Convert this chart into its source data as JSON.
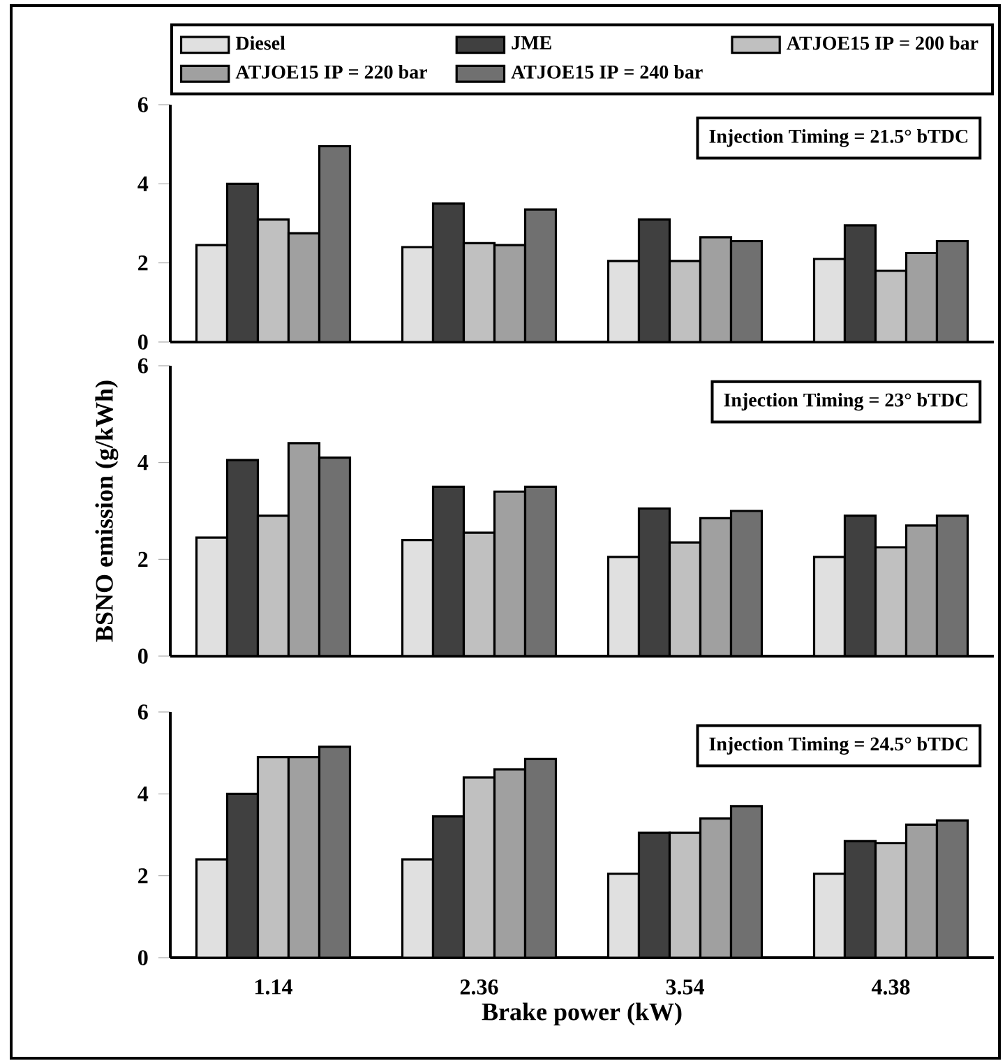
{
  "chart_data": [
    {
      "type": "bar",
      "categories": [
        "1.14",
        "2.36",
        "3.54",
        "4.38"
      ],
      "tick_labels": "y",
      "ylim": [
        0,
        6
      ],
      "yticks": [
        0,
        2,
        4,
        6
      ],
      "legend": "top",
      "annotations": [
        "Injection Timing = 21.5° bTDC"
      ],
      "series": [
        {
          "name": "Diesel",
          "color": "#e0e0e0",
          "values": [
            2.45,
            2.4,
            2.05,
            2.1
          ]
        },
        {
          "name": "JME",
          "color": "#404040",
          "values": [
            4.0,
            3.5,
            3.1,
            2.95
          ]
        },
        {
          "name": "ATJOE15 IP = 200 bar",
          "color": "#c0c0c0",
          "values": [
            3.1,
            2.5,
            2.05,
            1.8
          ]
        },
        {
          "name": "ATJOE15 IP = 220 bar",
          "color": "#a0a0a0",
          "values": [
            2.75,
            2.45,
            2.65,
            2.25
          ]
        },
        {
          "name": "ATJOE15 IP = 240 bar",
          "color": "#707070",
          "values": [
            4.95,
            3.35,
            2.55,
            2.55
          ]
        }
      ]
    },
    {
      "type": "bar",
      "categories": [
        "1.14",
        "2.36",
        "3.54",
        "4.38"
      ],
      "tick_labels": "y",
      "ylabel": "BSNO emission (g/kWh)",
      "ylim": [
        0,
        6
      ],
      "yticks": [
        0,
        2,
        4,
        6
      ],
      "annotations": [
        "Injection Timing = 23° bTDC"
      ],
      "series": [
        {
          "color": "#e0e0e0",
          "values": [
            2.45,
            2.4,
            2.05,
            2.05
          ]
        },
        {
          "color": "#404040",
          "values": [
            4.05,
            3.5,
            3.05,
            2.9
          ]
        },
        {
          "color": "#c0c0c0",
          "values": [
            2.9,
            2.55,
            2.35,
            2.25
          ]
        },
        {
          "color": "#a0a0a0",
          "values": [
            4.4,
            3.4,
            2.85,
            2.7
          ]
        },
        {
          "color": "#707070",
          "values": [
            4.1,
            3.5,
            3.0,
            2.9
          ]
        }
      ]
    },
    {
      "type": "bar",
      "categories": [
        "1.14",
        "2.36",
        "3.54",
        "4.38"
      ],
      "xlabel": "Brake power (kW)",
      "ylim": [
        0,
        6
      ],
      "yticks": [
        0,
        2,
        4,
        6
      ],
      "annotations": [
        "Injection Timing = 24.5° bTDC"
      ],
      "series": [
        {
          "color": "#e0e0e0",
          "values": [
            2.4,
            2.4,
            2.05,
            2.05
          ]
        },
        {
          "color": "#404040",
          "values": [
            4.0,
            3.45,
            3.05,
            2.85
          ]
        },
        {
          "color": "#c0c0c0",
          "values": [
            4.9,
            4.4,
            3.05,
            2.8
          ]
        },
        {
          "color": "#a0a0a0",
          "values": [
            4.9,
            4.6,
            3.4,
            3.25
          ]
        },
        {
          "color": "#707070",
          "values": [
            5.15,
            4.85,
            3.7,
            3.35
          ]
        }
      ]
    }
  ]
}
